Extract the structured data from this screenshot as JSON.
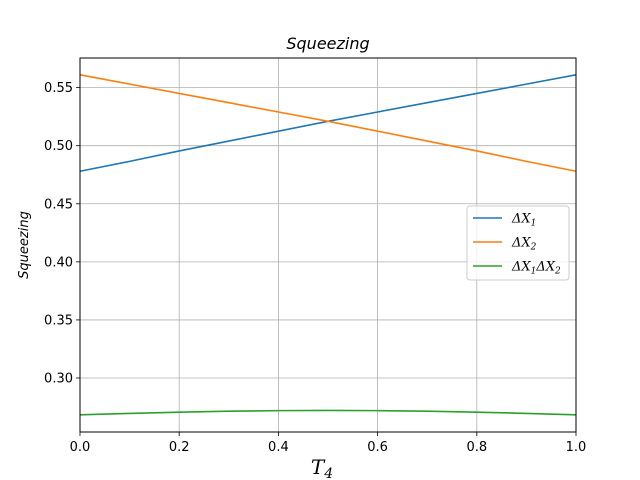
{
  "chart_data": {
    "type": "line",
    "title": "Squeezing",
    "xlabel": "T",
    "xlabel_sub": "4",
    "ylabel": "Squeezing",
    "xlim": [
      0.0,
      1.0
    ],
    "ylim": [
      0.2535,
      0.5755
    ],
    "xticks": [
      0.0,
      0.2,
      0.4,
      0.6,
      0.8,
      1.0
    ],
    "xtick_labels": [
      "0.0",
      "0.2",
      "0.4",
      "0.6",
      "0.8",
      "1.0"
    ],
    "yticks": [
      0.3,
      0.35,
      0.4,
      0.45,
      0.5,
      0.55
    ],
    "ytick_labels": [
      "0.30",
      "0.35",
      "0.40",
      "0.45",
      "0.50",
      "0.55"
    ],
    "grid": true,
    "legend_position": "center-right",
    "x": [
      0.0,
      0.1,
      0.2,
      0.3,
      0.4,
      0.5,
      0.6,
      0.7,
      0.8,
      0.9,
      1.0
    ],
    "series": [
      {
        "name": "ΔX1",
        "legend": {
          "base": "ΔX",
          "sub": "1"
        },
        "color": "#1f77b4",
        "values": [
          0.478,
          0.4865,
          0.4955,
          0.504,
          0.5125,
          0.521,
          0.529,
          0.537,
          0.545,
          0.553,
          0.561
        ]
      },
      {
        "name": "ΔX2",
        "legend": {
          "base": "ΔX",
          "sub": "2"
        },
        "color": "#ff7f0e",
        "values": [
          0.561,
          0.553,
          0.545,
          0.537,
          0.529,
          0.521,
          0.5125,
          0.504,
          0.4955,
          0.4865,
          0.478
        ]
      },
      {
        "name": "ΔX1ΔX2",
        "legend": {
          "base": "ΔX",
          "sub": "1",
          "base2": "ΔX",
          "sub2": "2"
        },
        "color": "#2ca02c",
        "values": [
          0.2683,
          0.2695,
          0.2706,
          0.2714,
          0.2719,
          0.2721,
          0.2719,
          0.2714,
          0.2706,
          0.2695,
          0.2683
        ]
      }
    ]
  }
}
